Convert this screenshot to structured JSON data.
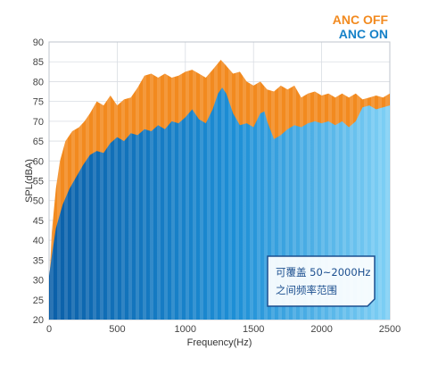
{
  "chart_data": {
    "type": "area",
    "xlabel": "Frequency(Hz)",
    "ylabel": "SPL(dBA)",
    "xlim": [
      0,
      2500
    ],
    "ylim": [
      20,
      90
    ],
    "x_ticks": [
      0,
      500,
      1000,
      1500,
      2000,
      2500
    ],
    "y_ticks": [
      20,
      25,
      30,
      35,
      40,
      45,
      50,
      55,
      60,
      65,
      70,
      75,
      80,
      85,
      90
    ],
    "grid": true,
    "legend_position": "top-right",
    "series": [
      {
        "name": "ANC OFF",
        "color": "#f28a1f",
        "points": [
          [
            0,
            28
          ],
          [
            20,
            42
          ],
          [
            50,
            53
          ],
          [
            80,
            60
          ],
          [
            120,
            65
          ],
          [
            170,
            67.5
          ],
          [
            220,
            68.5
          ],
          [
            260,
            70
          ],
          [
            300,
            72
          ],
          [
            350,
            75
          ],
          [
            400,
            74
          ],
          [
            450,
            76.5
          ],
          [
            500,
            74
          ],
          [
            550,
            75.5
          ],
          [
            600,
            76
          ],
          [
            650,
            78.5
          ],
          [
            700,
            81.5
          ],
          [
            750,
            82
          ],
          [
            800,
            81
          ],
          [
            850,
            82
          ],
          [
            900,
            81
          ],
          [
            950,
            81.5
          ],
          [
            1000,
            82.5
          ],
          [
            1050,
            83
          ],
          [
            1100,
            82
          ],
          [
            1150,
            81
          ],
          [
            1200,
            83
          ],
          [
            1260,
            85.5
          ],
          [
            1300,
            84
          ],
          [
            1350,
            82
          ],
          [
            1400,
            82.5
          ],
          [
            1450,
            80
          ],
          [
            1500,
            79
          ],
          [
            1550,
            80
          ],
          [
            1600,
            78
          ],
          [
            1650,
            77.5
          ],
          [
            1700,
            79
          ],
          [
            1750,
            78
          ],
          [
            1800,
            79
          ],
          [
            1850,
            76
          ],
          [
            1900,
            77
          ],
          [
            1950,
            77.5
          ],
          [
            2000,
            76.5
          ],
          [
            2050,
            77
          ],
          [
            2100,
            76
          ],
          [
            2150,
            77
          ],
          [
            2200,
            76
          ],
          [
            2250,
            77
          ],
          [
            2300,
            75.5
          ],
          [
            2350,
            76
          ],
          [
            2400,
            76.5
          ],
          [
            2450,
            76
          ],
          [
            2500,
            77
          ]
        ]
      },
      {
        "name": "ANC ON",
        "color": "#1581c8",
        "points": [
          [
            0,
            31
          ],
          [
            20,
            36
          ],
          [
            50,
            43
          ],
          [
            100,
            49
          ],
          [
            150,
            53
          ],
          [
            200,
            56
          ],
          [
            250,
            59
          ],
          [
            300,
            61.5
          ],
          [
            350,
            62.5
          ],
          [
            400,
            62
          ],
          [
            450,
            64.5
          ],
          [
            500,
            66
          ],
          [
            550,
            65
          ],
          [
            600,
            67
          ],
          [
            650,
            66.5
          ],
          [
            700,
            68
          ],
          [
            750,
            67.5
          ],
          [
            800,
            69
          ],
          [
            850,
            68
          ],
          [
            900,
            70
          ],
          [
            950,
            69.5
          ],
          [
            1000,
            71
          ],
          [
            1050,
            73
          ],
          [
            1100,
            70.5
          ],
          [
            1150,
            69.5
          ],
          [
            1200,
            73
          ],
          [
            1240,
            77
          ],
          [
            1270,
            78.5
          ],
          [
            1300,
            77
          ],
          [
            1350,
            72
          ],
          [
            1400,
            69
          ],
          [
            1450,
            69.5
          ],
          [
            1500,
            68.5
          ],
          [
            1550,
            72
          ],
          [
            1580,
            72.5
          ],
          [
            1600,
            70
          ],
          [
            1650,
            65.5
          ],
          [
            1700,
            66.5
          ],
          [
            1750,
            68
          ],
          [
            1800,
            69
          ],
          [
            1850,
            68.5
          ],
          [
            1900,
            69.5
          ],
          [
            1950,
            70
          ],
          [
            2000,
            69.5
          ],
          [
            2050,
            70
          ],
          [
            2100,
            69
          ],
          [
            2150,
            70
          ],
          [
            2200,
            68.5
          ],
          [
            2250,
            70
          ],
          [
            2300,
            73.5
          ],
          [
            2350,
            74
          ],
          [
            2400,
            73
          ],
          [
            2450,
            73.5
          ],
          [
            2500,
            74
          ]
        ]
      }
    ],
    "annotation": {
      "line1": "可覆盖 50~2000Hz",
      "line2": "之间频率范围"
    }
  }
}
